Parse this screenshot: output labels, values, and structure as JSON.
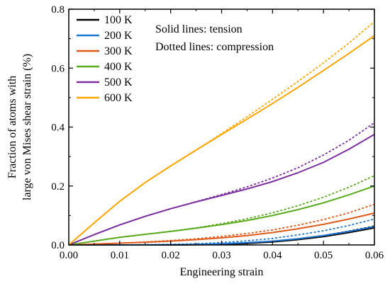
{
  "chart_data": {
    "type": "line",
    "xlabel": "Engineering strain",
    "ylabel_lines": [
      "Fraction of atoms with",
      "large von Mises shear strain (%)"
    ],
    "xlim": [
      0.0,
      0.06
    ],
    "ylim": [
      0.0,
      0.8
    ],
    "xticks": [
      0.0,
      0.01,
      0.02,
      0.03,
      0.04,
      0.05,
      0.06
    ],
    "yticks": [
      0.0,
      0.2,
      0.4,
      0.6,
      0.8
    ],
    "xtick_labels": [
      "0.00",
      "0.01",
      "0.02",
      "0.03",
      "0.04",
      "0.05",
      "0.06"
    ],
    "ytick_labels": [
      "0.0",
      "0.2",
      "0.4",
      "0.6",
      "0.8"
    ],
    "annotations": [
      "Solid lines: tension",
      "Dotted lines: compression"
    ],
    "grid": false,
    "legend_position": "top-left",
    "x": [
      0.0,
      0.005,
      0.01,
      0.015,
      0.02,
      0.025,
      0.03,
      0.035,
      0.04,
      0.045,
      0.05,
      0.055,
      0.06
    ],
    "series": [
      {
        "name": "100 K",
        "color": "#000000",
        "tension": [
          0.0,
          0.0,
          0.0,
          0.0,
          0.0,
          0.001,
          0.002,
          0.005,
          0.01,
          0.018,
          0.028,
          0.042,
          0.058
        ],
        "compression": [
          0.0,
          0.0,
          0.0,
          0.0,
          0.0,
          0.001,
          0.003,
          0.006,
          0.012,
          0.021,
          0.032,
          0.047,
          0.064
        ]
      },
      {
        "name": "200 K",
        "color": "#1f77d4",
        "tension": [
          0.0,
          0.0,
          0.0,
          0.0,
          0.001,
          0.002,
          0.004,
          0.008,
          0.013,
          0.021,
          0.032,
          0.046,
          0.062
        ],
        "compression": [
          0.0,
          0.0,
          0.0,
          0.001,
          0.002,
          0.004,
          0.008,
          0.014,
          0.022,
          0.034,
          0.048,
          0.066,
          0.088
        ]
      },
      {
        "name": "300 K",
        "color": "#e05a1a",
        "tension": [
          0.0,
          0.003,
          0.006,
          0.009,
          0.013,
          0.018,
          0.024,
          0.032,
          0.042,
          0.055,
          0.07,
          0.088,
          0.108
        ],
        "compression": [
          0.0,
          0.003,
          0.006,
          0.01,
          0.015,
          0.021,
          0.029,
          0.039,
          0.051,
          0.067,
          0.086,
          0.109,
          0.138
        ]
      },
      {
        "name": "400 K",
        "color": "#5aab1e",
        "tension": [
          0.0,
          0.013,
          0.026,
          0.036,
          0.046,
          0.057,
          0.069,
          0.083,
          0.1,
          0.12,
          0.143,
          0.17,
          0.2
        ],
        "compression": [
          0.0,
          0.013,
          0.026,
          0.036,
          0.046,
          0.058,
          0.072,
          0.089,
          0.109,
          0.133,
          0.162,
          0.196,
          0.235
        ]
      },
      {
        "name": "500 K",
        "color": "#7b2f9e",
        "tension": [
          0.0,
          0.035,
          0.068,
          0.097,
          0.123,
          0.146,
          0.168,
          0.19,
          0.215,
          0.245,
          0.28,
          0.325,
          0.375
        ],
        "compression": [
          0.0,
          0.035,
          0.068,
          0.097,
          0.123,
          0.147,
          0.171,
          0.197,
          0.227,
          0.262,
          0.305,
          0.355,
          0.415
        ]
      },
      {
        "name": "600 K",
        "color": "#ffa500",
        "tension": [
          0.0,
          0.075,
          0.148,
          0.212,
          0.268,
          0.322,
          0.375,
          0.427,
          0.48,
          0.535,
          0.592,
          0.65,
          0.71
        ],
        "compression": [
          0.0,
          0.075,
          0.148,
          0.212,
          0.268,
          0.322,
          0.378,
          0.435,
          0.494,
          0.555,
          0.618,
          0.685,
          0.758
        ]
      }
    ]
  }
}
